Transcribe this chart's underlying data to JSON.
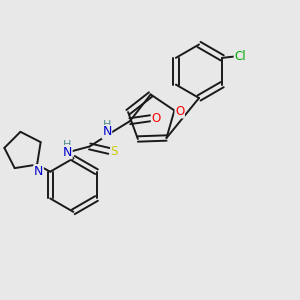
{
  "background_color": "#e8e8e8",
  "bond_color": "#1a1a1a",
  "atom_colors": {
    "O": "#ff0000",
    "N": "#0000cc",
    "S": "#cccc00",
    "Cl": "#00aa00",
    "H": "#4a8a8a",
    "C": "#1a1a1a"
  },
  "figsize": [
    3.0,
    3.0
  ],
  "dpi": 100
}
